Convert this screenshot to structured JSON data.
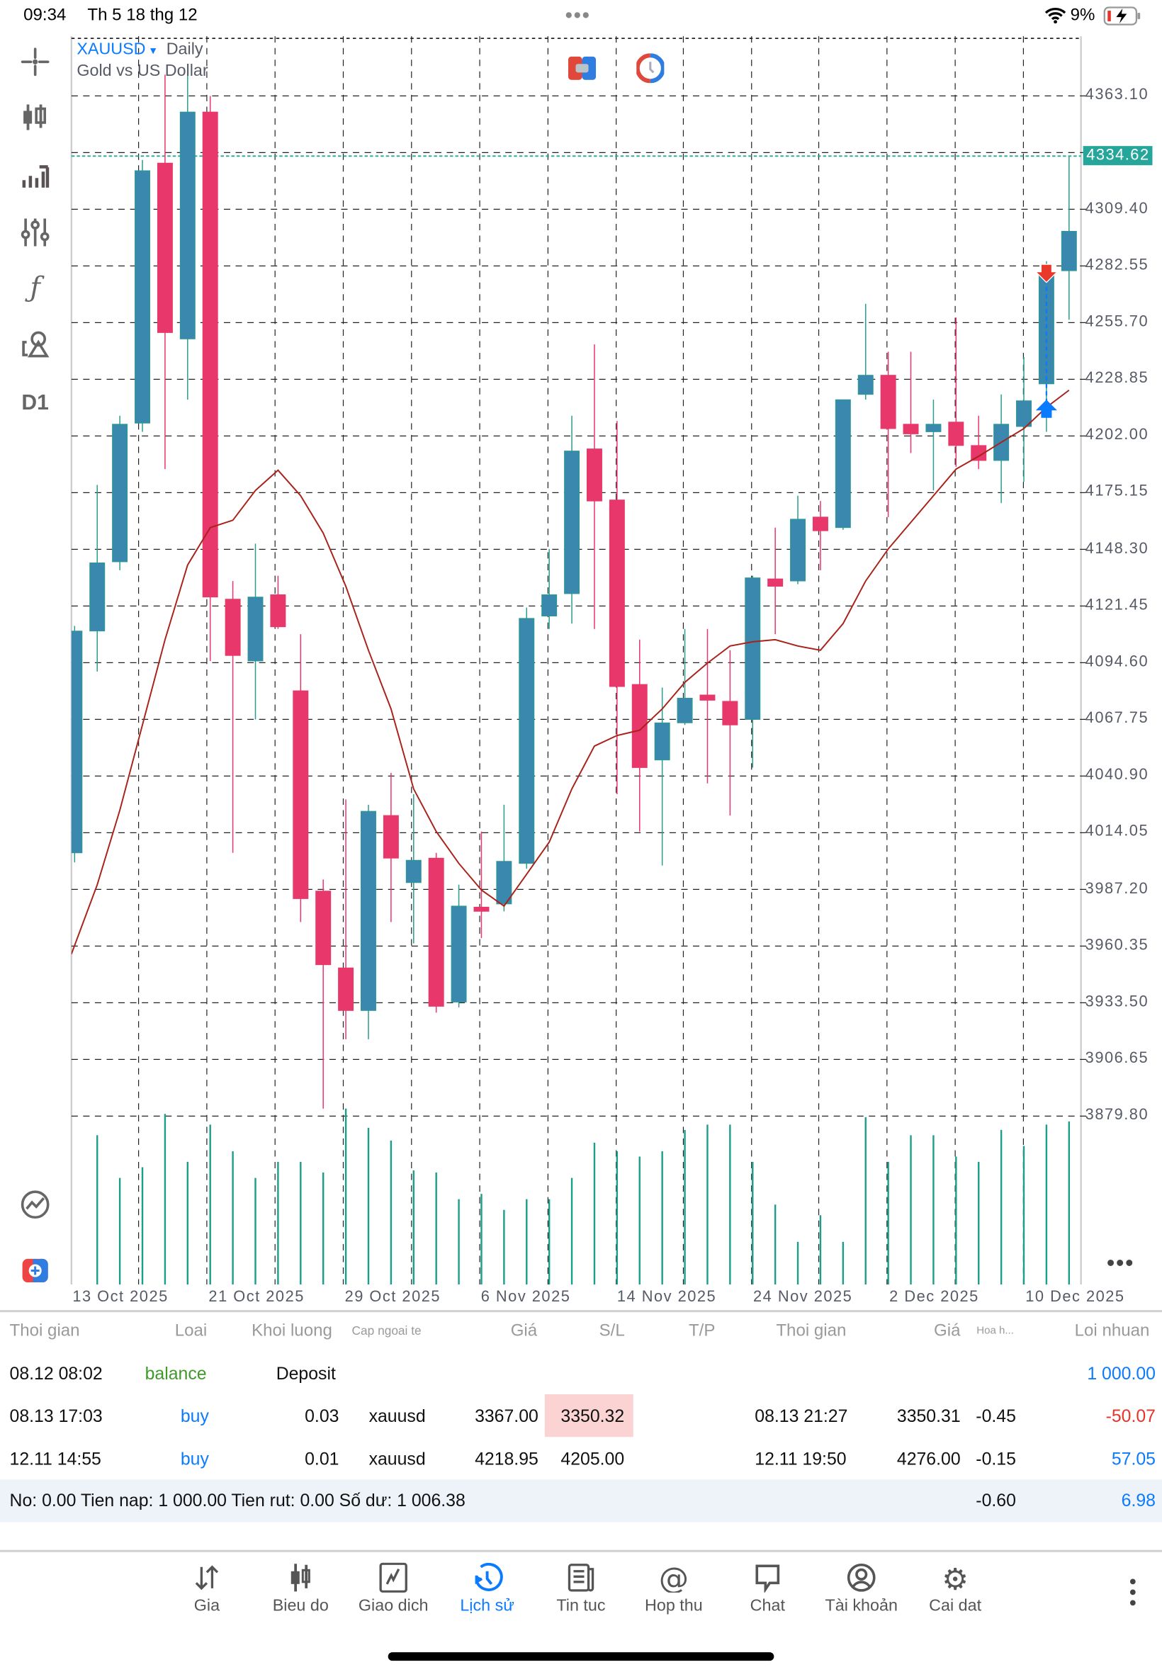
{
  "status_bar": {
    "time": "09:34",
    "date": "Th 5 18 thg 12",
    "battery": "9%"
  },
  "chart_header": {
    "symbol": "XAUUSD",
    "timeframe": "Daily",
    "description": "Gold vs US Dollar"
  },
  "left_toolbar": {
    "timeframe_label": "D1"
  },
  "price_axis": [
    "4363.10",
    "4309.40",
    "4282.55",
    "4255.70",
    "4228.85",
    "4202.00",
    "4175.15",
    "4148.30",
    "4121.45",
    "4094.60",
    "4067.75",
    "4040.90",
    "4014.05",
    "3987.20",
    "3960.35",
    "3933.50",
    "3906.65",
    "3879.80"
  ],
  "current_price": "4334.62",
  "date_axis": [
    "13 Oct 2025",
    "21 Oct 2025",
    "29 Oct 2025",
    "6 Nov 2025",
    "14 Nov 2025",
    "24 Nov 2025",
    "2 Dec 2025",
    "10 Dec 2025"
  ],
  "colors": {
    "bull": "#3a88ad",
    "bear": "#e8386b",
    "ma": "#a8221a",
    "volume": "#1f9d8c",
    "accent": "#0a7aff",
    "price_tag": "#26a69a",
    "loss": "#e8332a",
    "sl_highlight": "#fbd3d3"
  },
  "chart_data": {
    "type": "candlestick",
    "title": "XAUUSD Daily",
    "ylim": [
      3800.0,
      4391.4
    ],
    "current_price": 4334.62,
    "ohlc": [
      [
        4004.5,
        4112.0,
        4000.0,
        4109.6
      ],
      [
        4109.6,
        4178.8,
        4090.4,
        4141.9
      ],
      [
        4142.4,
        4211.6,
        4138.4,
        4207.6
      ],
      [
        4208.1,
        4332.8,
        4204.0,
        4327.7
      ],
      [
        4331.3,
        4373.2,
        4186.3,
        4251.0
      ],
      [
        4248.0,
        4373.2,
        4219.2,
        4355.5
      ],
      [
        4355.5,
        4363.1,
        4095.4,
        4125.7
      ],
      [
        4124.7,
        4133.3,
        4004.5,
        4098.0
      ],
      [
        4095.4,
        4151.0,
        4067.7,
        4125.7
      ],
      [
        4126.8,
        4135.8,
        4110.6,
        4111.6
      ],
      [
        4081.3,
        4108.1,
        3971.7,
        3982.8
      ],
      [
        3986.4,
        3991.9,
        3883.3,
        3951.5
      ],
      [
        3950.0,
        4029.8,
        3916.2,
        3929.8
      ],
      [
        3929.8,
        4027.3,
        3916.2,
        4024.2
      ],
      [
        4022.2,
        4042.4,
        3971.7,
        4002.0
      ],
      [
        3990.4,
        4032.3,
        3961.6,
        4001.0
      ],
      [
        4002.0,
        4004.5,
        3928.8,
        3931.8
      ],
      [
        3933.8,
        3989.4,
        3931.3,
        3979.3
      ],
      [
        3978.8,
        4014.6,
        3964.1,
        3976.8
      ],
      [
        3980.3,
        4027.3,
        3976.8,
        4000.5
      ],
      [
        3999.5,
        4120.7,
        3997.0,
        4115.6
      ],
      [
        4116.7,
        4148.5,
        4110.6,
        4126.8
      ],
      [
        4127.3,
        4211.6,
        4113.1,
        4194.9
      ],
      [
        4195.9,
        4245.4,
        4110.6,
        4171.2
      ],
      [
        4171.7,
        4209.1,
        4032.3,
        4083.3
      ],
      [
        4084.3,
        4105.5,
        4014.6,
        4044.9
      ],
      [
        4048.5,
        4082.8,
        3998.5,
        4066.1
      ],
      [
        4066.1,
        4110.6,
        4065.1,
        4077.8
      ],
      [
        4079.3,
        4110.6,
        4037.4,
        4076.8
      ],
      [
        4076.3,
        4100.5,
        4022.2,
        4065.1
      ],
      [
        4067.7,
        4135.8,
        4044.9,
        4134.8
      ],
      [
        4134.3,
        4158.6,
        4108.1,
        4130.8
      ],
      [
        4133.3,
        4173.7,
        4131.8,
        4162.6
      ],
      [
        4163.6,
        4171.2,
        4138.4,
        4157.1
      ],
      [
        4158.6,
        4219.2,
        4157.6,
        4219.2
      ],
      [
        4221.7,
        4264.6,
        4219.2,
        4230.8
      ],
      [
        4230.8,
        4241.9,
        4163.6,
        4205.5
      ],
      [
        4207.6,
        4241.9,
        4193.9,
        4203.0
      ],
      [
        4204.0,
        4219.2,
        4176.2,
        4207.6
      ],
      [
        4208.6,
        4258.1,
        4187.4,
        4197.5
      ],
      [
        4197.5,
        4211.6,
        4186.3,
        4190.4
      ],
      [
        4190.4,
        4221.7,
        4170.2,
        4207.6
      ],
      [
        4206.5,
        4239.4,
        4180.3,
        4218.7
      ],
      [
        4226.7,
        4284.8,
        4204.0,
        4278.3
      ],
      [
        4280.3,
        4334.6,
        4257.1,
        4299.0
      ]
    ],
    "ma": [
      3956.6,
      3989.4,
      4024.7,
      4065.1,
      4105.5,
      4140.9,
      4158.6,
      4162.1,
      4176.2,
      4185.8,
      4173.7,
      4156.0,
      4130.8,
      4100.5,
      4072.7,
      4034.8,
      4014.6,
      3999.5,
      3986.9,
      3979.3,
      3994.4,
      4009.6,
      4034.8,
      4055.1,
      4060.1,
      4062.6,
      4072.7,
      4085.3,
      4094.4,
      4102.5,
      4104.5,
      4105.5,
      4102.5,
      4100.5,
      4113.1,
      4133.3,
      4148.5,
      4161.1,
      4173.7,
      4186.3,
      4192.4,
      4199.0,
      4205.5,
      4215.6,
      4223.7
    ],
    "volume_relative": [
      0,
      140,
      100,
      110,
      160,
      115,
      150,
      125,
      100,
      115,
      115,
      105,
      165,
      147,
      135,
      107,
      105,
      80,
      85,
      70,
      80,
      80,
      100,
      133,
      125,
      120,
      125,
      145,
      150,
      150,
      115,
      75,
      40,
      65,
      40,
      157,
      115,
      140,
      140,
      120,
      115,
      145,
      130,
      150,
      153
    ]
  },
  "table": {
    "headers": [
      "Thoi gian",
      "Loai",
      "Khoi luong",
      "Cap ngoai te",
      "Giá",
      "S/L",
      "T/P",
      "Thoi gian",
      "Giá",
      "Hoa h...",
      "Loi nhuan"
    ],
    "rows": [
      {
        "open_time": "08.12 08:02",
        "type": "balance",
        "volume": "",
        "comment": "Deposit",
        "symbol": "",
        "price": "",
        "sl": "",
        "tp": "",
        "close_time": "",
        "close_price": "",
        "commission": "",
        "profit": "1 000.00"
      },
      {
        "open_time": "08.13 17:03",
        "type": "buy",
        "volume": "0.03",
        "symbol": "xauusd",
        "price": "3367.00",
        "sl": "3350.32",
        "tp": "",
        "close_time": "08.13 21:27",
        "close_price": "3350.31",
        "commission": "-0.45",
        "profit": "-50.07"
      },
      {
        "open_time": "12.11 14:55",
        "type": "buy",
        "volume": "0.01",
        "symbol": "xauusd",
        "price": "4218.95",
        "sl": "4205.00",
        "tp": "",
        "close_time": "12.11 19:50",
        "close_price": "4276.00",
        "commission": "-0.15",
        "profit": "57.05"
      }
    ],
    "summary": {
      "text": "No: 0.00 Tien nap: 1 000.00 Tien rut: 0.00 Số dư: 1 006.38",
      "commission": "-0.60",
      "profit": "6.98"
    }
  },
  "bottom_nav": [
    {
      "label": "Gia",
      "icon": "quotes-arrows-icon"
    },
    {
      "label": "Bieu do",
      "icon": "chart-candles-icon"
    },
    {
      "label": "Giao dich",
      "icon": "trade-icon"
    },
    {
      "label": "Lịch sử",
      "icon": "history-icon",
      "active": true
    },
    {
      "label": "Tin tuc",
      "icon": "news-icon"
    },
    {
      "label": "Hop thu",
      "icon": "mail-at-icon"
    },
    {
      "label": "Chat",
      "icon": "chat-icon"
    },
    {
      "label": "Tài khoản",
      "icon": "account-icon"
    },
    {
      "label": "Cai dat",
      "icon": "settings-icon"
    }
  ]
}
